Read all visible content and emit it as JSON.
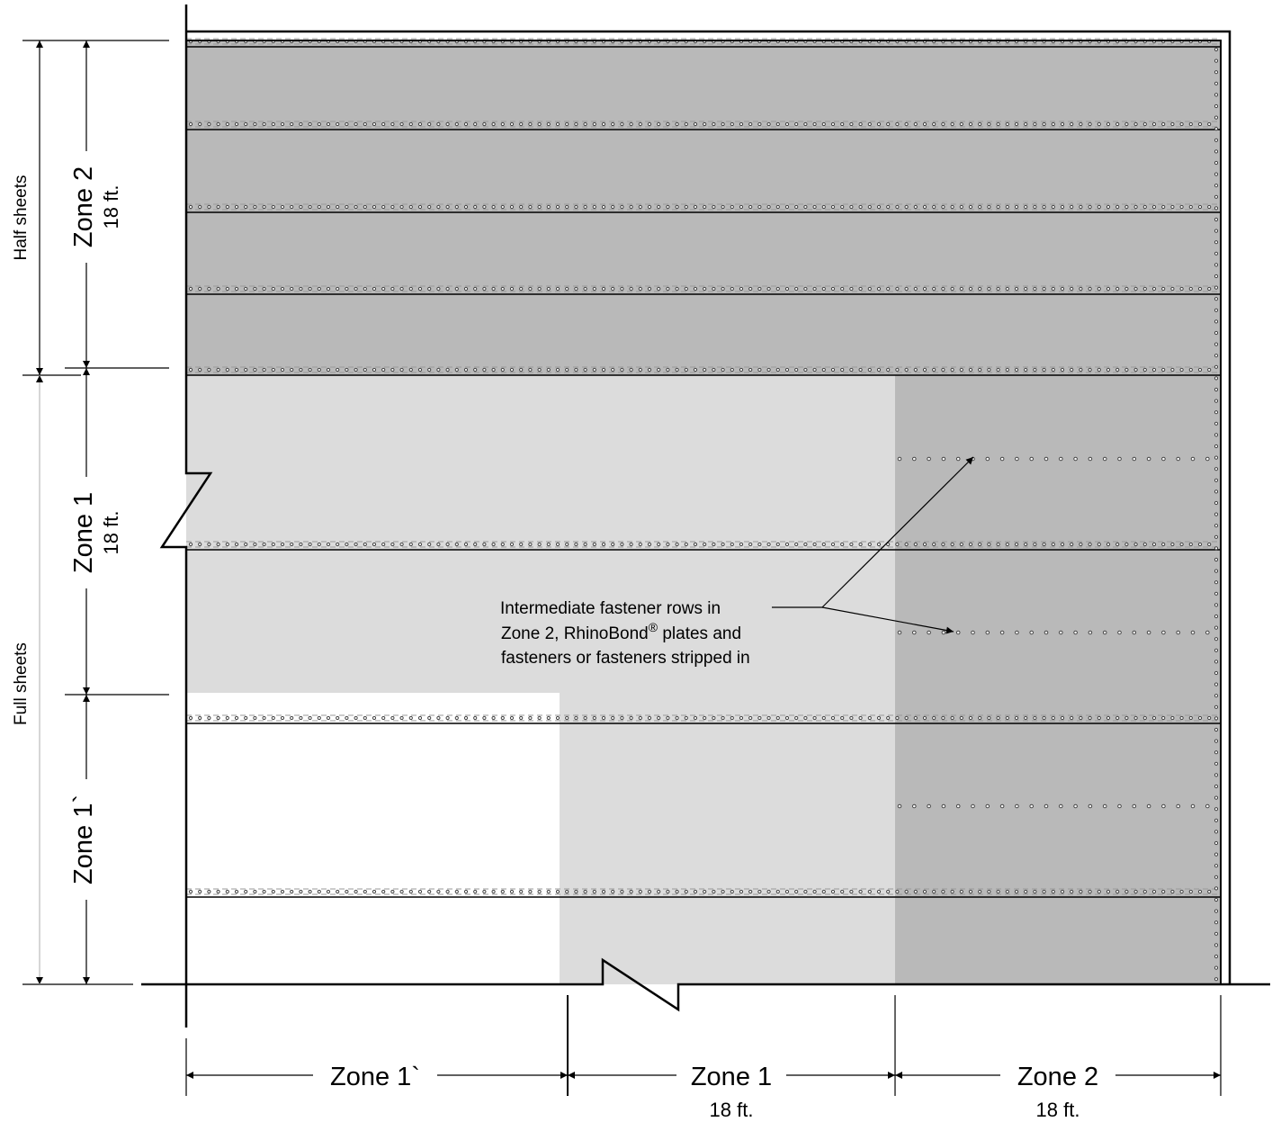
{
  "colors": {
    "zone2_fill": "#b9b9b9",
    "zone1_fill": "#dcdcdc",
    "zone1prime_fill": "#ffffff",
    "line": "#000000"
  },
  "left_dims": {
    "half_sheets": "Half sheets",
    "full_sheets": "Full sheets",
    "zone2_label": "Zone 2",
    "zone2_size": "18 ft.",
    "zone1_label": "Zone 1",
    "zone1_size": "18 ft.",
    "zone1prime_label": "Zone 1`"
  },
  "bottom_dims": {
    "zone1prime_label": "Zone 1`",
    "zone1_label": "Zone 1",
    "zone1_size": "18 ft.",
    "zone2_label": "Zone 2",
    "zone2_size": "18 ft."
  },
  "callout": {
    "line1": "Intermediate fastener rows in",
    "line2a": "Zone 2, RhinoBond",
    "line2_sup": "®",
    "line2b": " plates and",
    "line3": "fasteners or fasteners stripped in"
  }
}
